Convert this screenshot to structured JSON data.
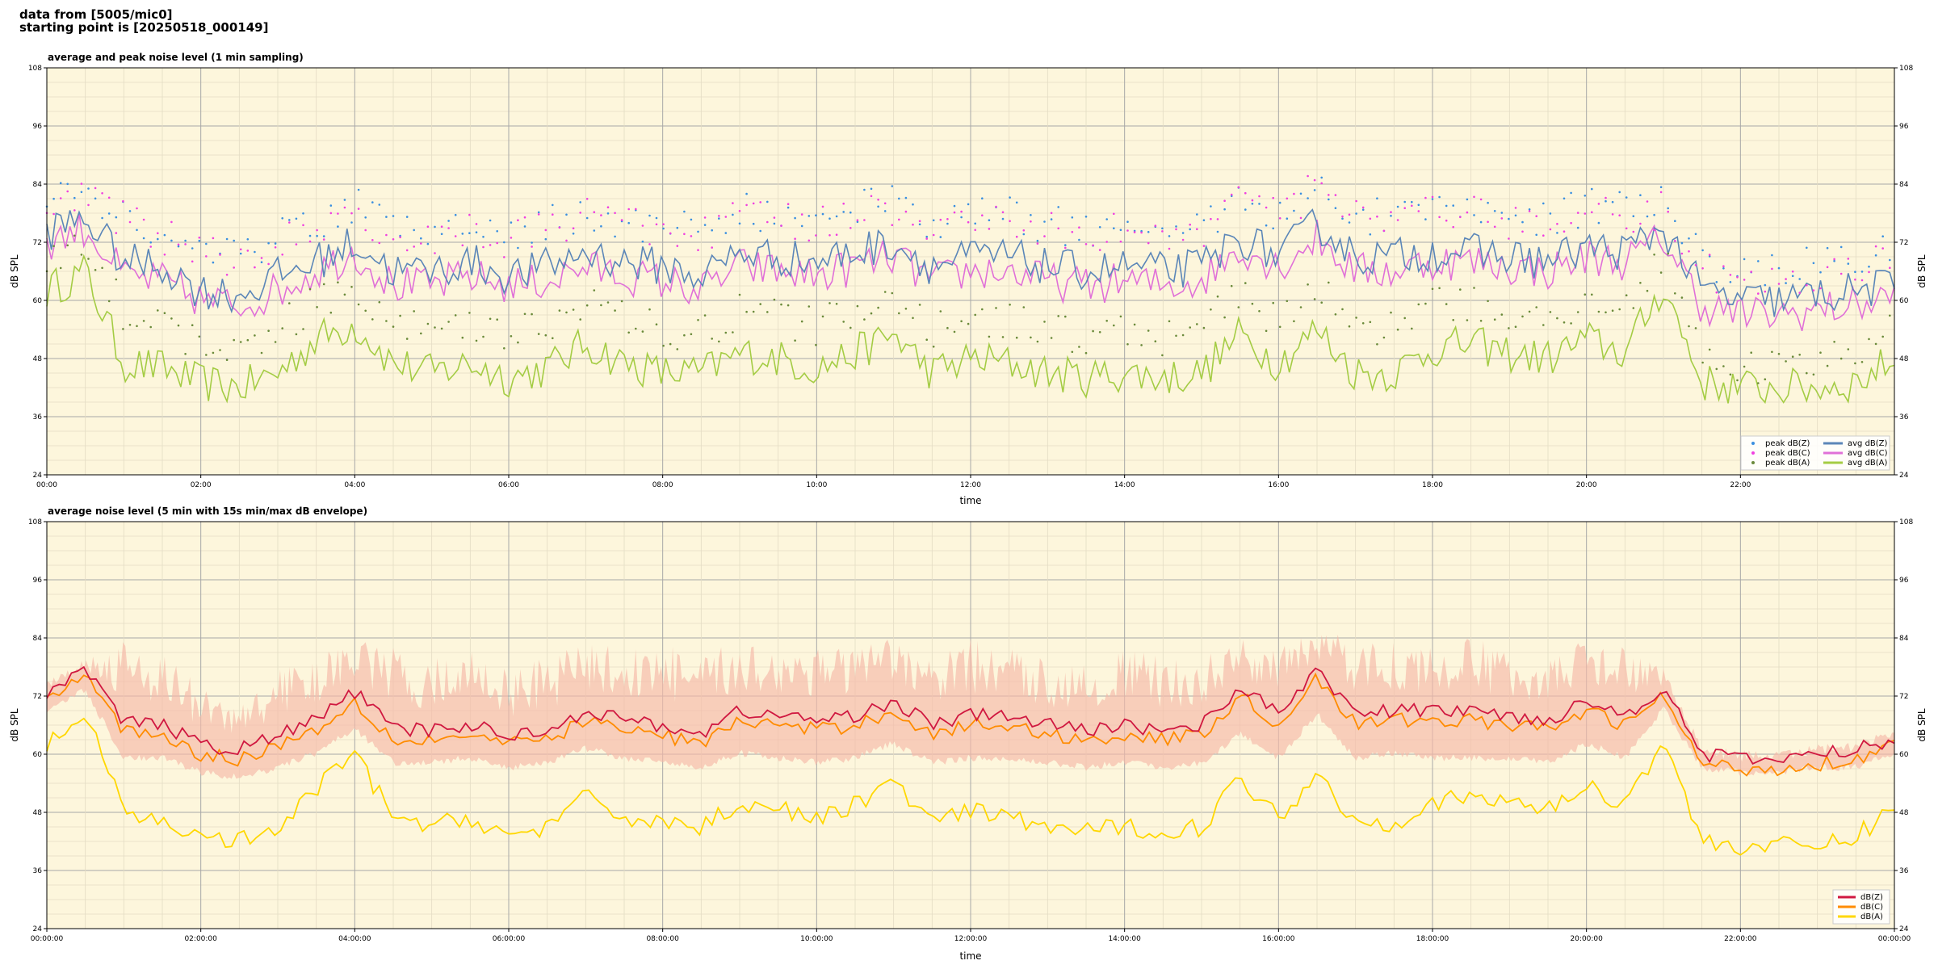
{
  "header": {
    "line1": "data from [5005/mic0]",
    "line2": "starting point is [20250518_000149]"
  },
  "colors": {
    "plot_bg": "#fdf6dc",
    "grid_major": "#a8a8a8",
    "grid_minor": "#e3dcc4",
    "avg_z": "#5b86b8",
    "avg_c": "#e070d8",
    "avg_a": "#a4cc44",
    "peak_z": "#3a8fe0",
    "peak_c": "#f040e0",
    "peak_a": "#6a8a3a",
    "dbz": "#d01840",
    "dbc": "#ff8c00",
    "dba": "#ffd700",
    "envelope": "#f6b8a8"
  },
  "chart_data": [
    {
      "type": "line",
      "title": "average and peak noise level (1 min sampling)",
      "xlabel": "time",
      "ylabel": "dB SPL",
      "ylim": [
        24,
        108
      ],
      "yticks": [
        "24",
        "36",
        "48",
        "60",
        "72",
        "84",
        "96",
        "108"
      ],
      "xlim_hours": [
        0,
        24
      ],
      "xticks": [
        "00:00",
        "02:00",
        "04:00",
        "06:00",
        "08:00",
        "10:00",
        "12:00",
        "14:00",
        "16:00",
        "18:00",
        "20:00",
        "22:00"
      ],
      "grid": true,
      "legend_position": "bottom-right",
      "legend": {
        "col1": [
          "peak dB(Z)",
          "peak dB(C)",
          "peak dB(A)"
        ],
        "col2": [
          "avg dB(Z)",
          "avg dB(C)",
          "avg dB(A)"
        ]
      },
      "x_hours": [
        0,
        0.5,
        1,
        1.5,
        2,
        2.5,
        3,
        3.5,
        4,
        4.5,
        5,
        5.5,
        6,
        6.5,
        7,
        7.5,
        8,
        8.5,
        9,
        9.5,
        10,
        10.5,
        11,
        11.5,
        12,
        12.5,
        13,
        13.5,
        14,
        14.5,
        15,
        15.5,
        16,
        16.5,
        17,
        17.5,
        18,
        18.5,
        19,
        19.5,
        20,
        20.5,
        21,
        21.5,
        22,
        22.5,
        23,
        23.5,
        24
      ],
      "series": [
        {
          "name": "avg dB(Z)",
          "values": [
            74,
            77,
            68,
            67,
            62,
            61,
            65,
            68,
            72,
            66,
            66,
            68,
            65,
            67,
            70,
            68,
            67,
            65,
            70,
            69,
            68,
            70,
            72,
            67,
            69,
            69,
            67,
            66,
            67,
            66,
            67,
            73,
            69,
            76,
            69,
            69,
            70,
            70,
            69,
            68,
            71,
            70,
            75,
            62,
            60,
            60,
            61,
            62,
            63
          ]
        },
        {
          "name": "avg dB(C)",
          "values": [
            72,
            75,
            65,
            64,
            60,
            59,
            62,
            66,
            70,
            63,
            63,
            65,
            63,
            64,
            67,
            65,
            64,
            62,
            67,
            66,
            65,
            67,
            69,
            64,
            66,
            66,
            64,
            63,
            64,
            63,
            64,
            71,
            67,
            73,
            66,
            66,
            68,
            68,
            67,
            66,
            69,
            68,
            73,
            59,
            57,
            57,
            58,
            59,
            61
          ]
        },
        {
          "name": "avg dB(A)",
          "values": [
            62,
            66,
            47,
            46,
            43,
            42,
            45,
            52,
            55,
            47,
            45,
            47,
            44,
            46,
            51,
            47,
            45,
            45,
            49,
            48,
            46,
            49,
            53,
            45,
            48,
            47,
            45,
            44,
            45,
            44,
            45,
            53,
            47,
            54,
            45,
            45,
            50,
            51,
            49,
            48,
            52,
            49,
            63,
            43,
            42,
            42,
            42,
            43,
            48
          ]
        },
        {
          "name": "peak dB(Z)",
          "values": [
            79,
            80,
            76,
            73,
            69,
            68,
            71,
            75,
            78,
            73,
            72,
            74,
            72,
            74,
            77,
            75,
            74,
            72,
            77,
            76,
            75,
            77,
            79,
            74,
            76,
            76,
            74,
            73,
            74,
            73,
            74,
            80,
            76,
            83,
            76,
            76,
            77,
            77,
            76,
            75,
            78,
            77,
            78,
            67,
            64,
            64,
            66,
            68,
            69
          ]
        },
        {
          "name": "peak dB(C)",
          "values": [
            78,
            79,
            75,
            72,
            68,
            67,
            70,
            74,
            77,
            72,
            71,
            73,
            71,
            73,
            76,
            74,
            73,
            71,
            76,
            75,
            74,
            76,
            78,
            73,
            75,
            75,
            73,
            72,
            73,
            72,
            73,
            79,
            75,
            82,
            75,
            75,
            76,
            76,
            75,
            74,
            77,
            76,
            77,
            65,
            62,
            62,
            64,
            66,
            68
          ]
        },
        {
          "name": "peak dB(A)",
          "values": [
            68,
            70,
            56,
            54,
            49,
            48,
            52,
            58,
            62,
            54,
            52,
            54,
            51,
            53,
            58,
            54,
            52,
            52,
            56,
            55,
            53,
            56,
            60,
            52,
            55,
            54,
            52,
            51,
            52,
            51,
            52,
            60,
            54,
            61,
            52,
            52,
            57,
            58,
            56,
            55,
            59,
            56,
            67,
            47,
            45,
            45,
            45,
            47,
            52
          ]
        }
      ]
    },
    {
      "type": "line",
      "title": "average noise level (5 min with 15s min/max dB envelope)",
      "xlabel": "time",
      "ylabel": "dB SPL",
      "ylim": [
        24,
        108
      ],
      "yticks": [
        "24",
        "36",
        "48",
        "60",
        "72",
        "84",
        "96",
        "108"
      ],
      "xlim_hours": [
        0,
        24
      ],
      "xticks": [
        "00:00:00",
        "02:00:00",
        "04:00:00",
        "06:00:00",
        "08:00:00",
        "10:00:00",
        "12:00:00",
        "14:00:00",
        "16:00:00",
        "18:00:00",
        "20:00:00",
        "22:00:00",
        "00:00:00"
      ],
      "grid": true,
      "legend_position": "bottom-right",
      "legend": {
        "col1": [
          "dB(Z)",
          "dB(C)",
          "dB(A)"
        ]
      },
      "x_hours": [
        0,
        0.5,
        1,
        1.5,
        2,
        2.5,
        3,
        3.5,
        4,
        4.5,
        5,
        5.5,
        6,
        6.5,
        7,
        7.5,
        8,
        8.5,
        9,
        9.5,
        10,
        10.5,
        11,
        11.5,
        12,
        12.5,
        13,
        13.5,
        14,
        14.5,
        15,
        15.5,
        16,
        16.5,
        17,
        17.5,
        18,
        18.5,
        19,
        19.5,
        20,
        20.5,
        21,
        21.5,
        22,
        22.5,
        23,
        23.5,
        24
      ],
      "series": [
        {
          "name": "dB(Z)",
          "values": [
            73,
            77,
            67,
            66,
            62,
            61,
            64,
            67,
            73,
            65,
            65,
            66,
            64,
            65,
            69,
            67,
            66,
            64,
            69,
            68,
            67,
            68,
            71,
            66,
            68,
            68,
            66,
            65,
            66,
            65,
            66,
            74,
            68,
            78,
            68,
            69,
            69,
            69,
            68,
            67,
            71,
            68,
            74,
            60,
            59,
            59,
            60,
            61,
            63
          ]
        },
        {
          "name": "dB(C)",
          "values": [
            72,
            76,
            65,
            64,
            60,
            59,
            62,
            65,
            71,
            63,
            63,
            64,
            62,
            63,
            67,
            65,
            64,
            62,
            67,
            66,
            65,
            66,
            69,
            64,
            66,
            66,
            64,
            63,
            64,
            63,
            64,
            72,
            66,
            76,
            66,
            67,
            67,
            67,
            66,
            65,
            69,
            66,
            72,
            58,
            57,
            57,
            58,
            59,
            62
          ]
        },
        {
          "name": "dB(A)",
          "values": [
            62,
            68,
            48,
            46,
            43,
            42,
            44,
            53,
            60,
            47,
            45,
            47,
            43,
            45,
            51,
            47,
            46,
            45,
            50,
            49,
            46,
            50,
            54,
            46,
            48,
            47,
            45,
            44,
            45,
            44,
            45,
            55,
            47,
            56,
            46,
            46,
            50,
            51,
            50,
            49,
            53,
            50,
            63,
            42,
            41,
            41,
            41,
            43,
            49
          ]
        }
      ],
      "envelope": {
        "name": "15s min/max dB envelope",
        "min": [
          70,
          74,
          60,
          60,
          57,
          56,
          58,
          61,
          66,
          59,
          59,
          60,
          58,
          59,
          62,
          60,
          59,
          58,
          61,
          60,
          59,
          60,
          63,
          59,
          60,
          60,
          59,
          58,
          59,
          58,
          59,
          65,
          60,
          69,
          60,
          61,
          60,
          60,
          60,
          59,
          63,
          60,
          70,
          58,
          57,
          57,
          58,
          58,
          61
        ],
        "max": [
          76,
          80,
          84,
          82,
          74,
          70,
          78,
          80,
          84,
          82,
          80,
          82,
          78,
          80,
          84,
          82,
          84,
          80,
          84,
          82,
          84,
          82,
          84,
          80,
          84,
          82,
          80,
          80,
          82,
          80,
          80,
          84,
          82,
          86,
          84,
          84,
          82,
          84,
          82,
          80,
          84,
          82,
          78,
          62,
          61,
          61,
          62,
          63,
          65
        ]
      }
    }
  ]
}
